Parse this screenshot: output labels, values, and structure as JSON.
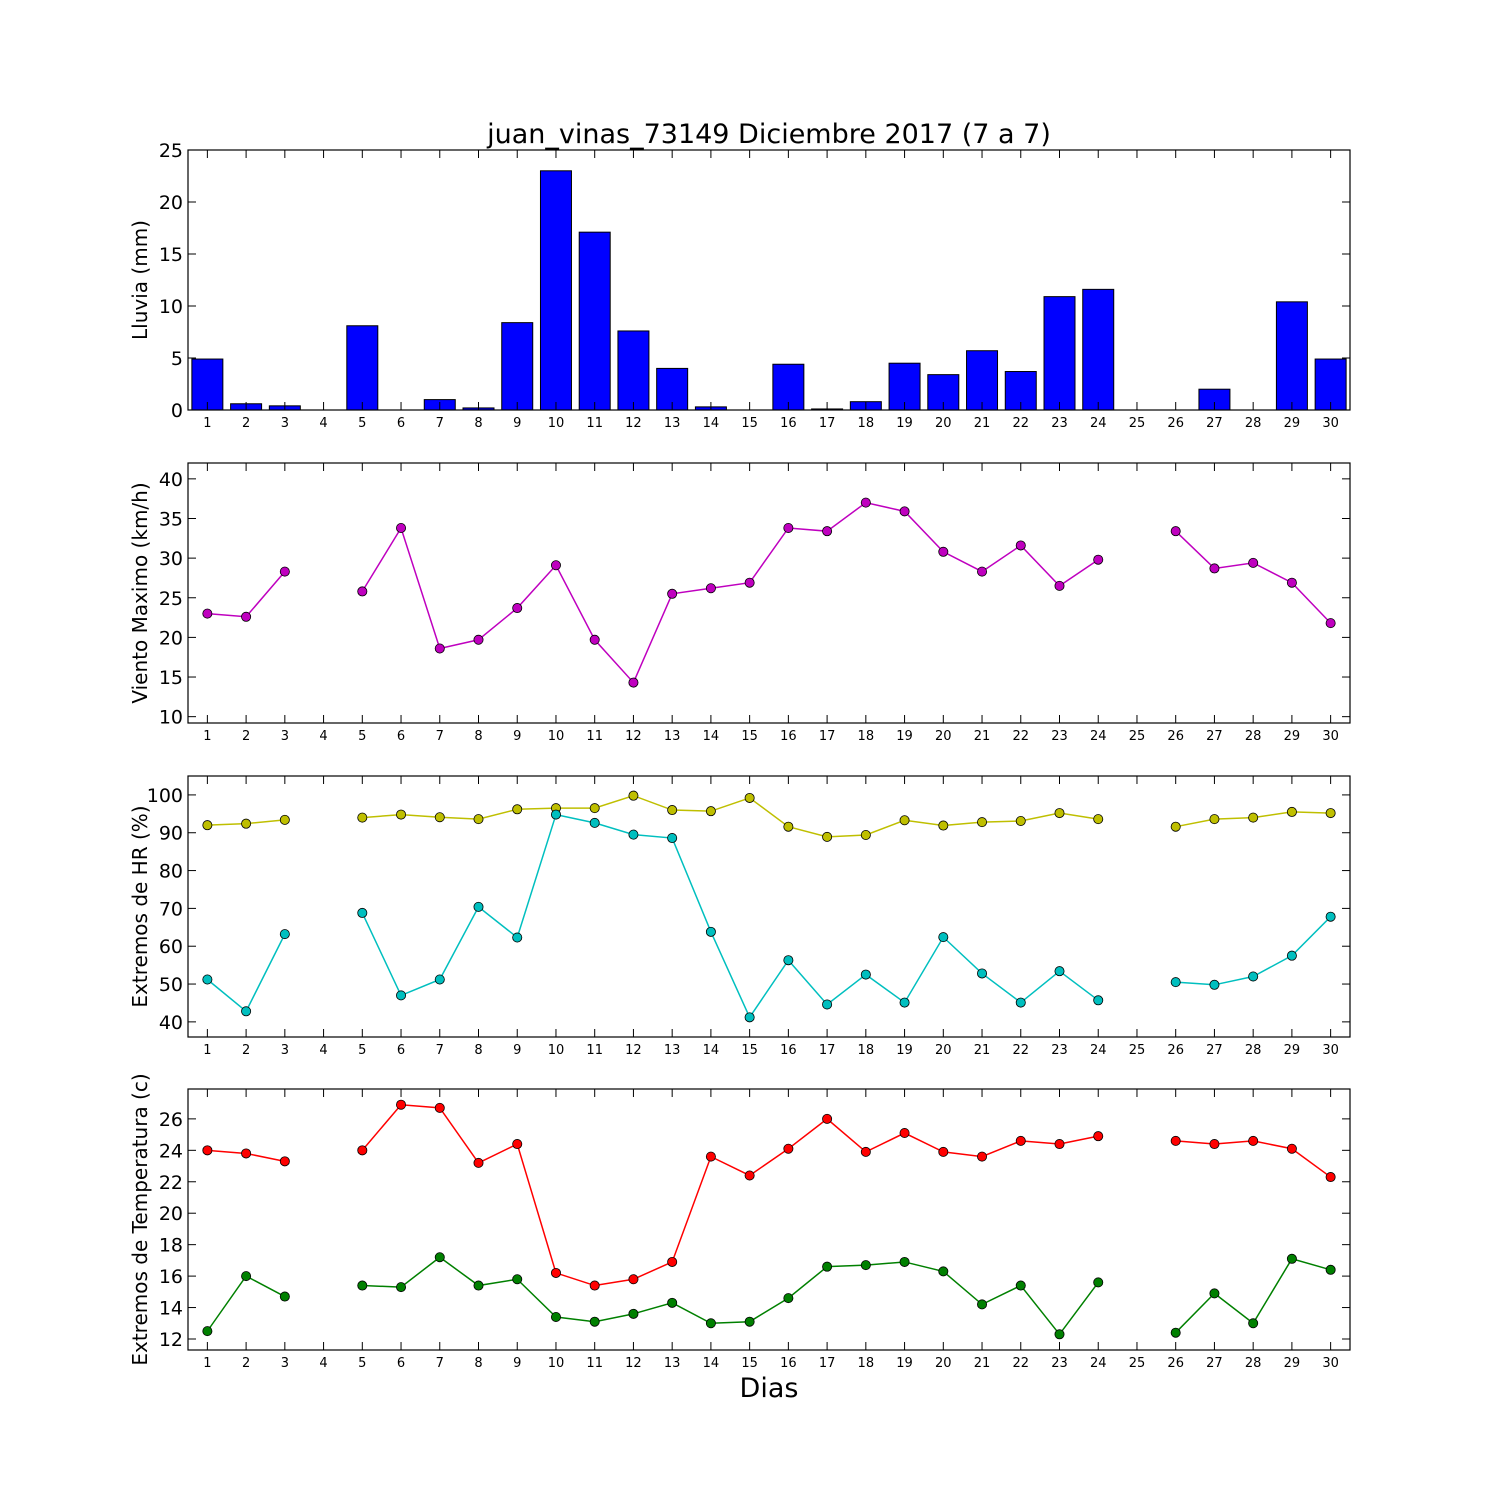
{
  "title": "juan_vinas_73149 Diciembre 2017  (7 a 7)",
  "xlabel": "Dias",
  "colors": {
    "rain": "#0000ff",
    "wind": "#bf00bf",
    "hr_max": "#bfbf00",
    "hr_min": "#00bfbf",
    "temp_max": "#ff0000",
    "temp_min": "#008000"
  },
  "chart_data": [
    {
      "type": "bar",
      "ylabel": "Lluvia (mm)",
      "ylim": [
        0,
        25
      ],
      "yticks": [
        0,
        5,
        10,
        15,
        20,
        25
      ],
      "categories": [
        1,
        2,
        3,
        4,
        5,
        6,
        7,
        8,
        9,
        10,
        11,
        12,
        13,
        14,
        15,
        16,
        17,
        18,
        19,
        20,
        21,
        22,
        23,
        24,
        25,
        26,
        27,
        28,
        29,
        30
      ],
      "series": [
        {
          "color_key": "rain",
          "values": [
            4.9,
            0.6,
            0.4,
            0,
            8.1,
            0,
            1.0,
            0.2,
            8.4,
            23.0,
            17.1,
            7.6,
            4.0,
            0.3,
            0,
            4.4,
            0.1,
            0.8,
            4.5,
            3.4,
            5.7,
            3.7,
            10.9,
            11.6,
            0,
            0,
            2.0,
            0,
            10.4,
            4.9
          ]
        }
      ]
    },
    {
      "type": "line",
      "ylabel": "Viento Maximo (km/h)",
      "ylim": [
        9.2,
        42
      ],
      "yticks": [
        10,
        15,
        20,
        25,
        30,
        35,
        40
      ],
      "categories": [
        1,
        2,
        3,
        4,
        5,
        6,
        7,
        8,
        9,
        10,
        11,
        12,
        13,
        14,
        15,
        16,
        17,
        18,
        19,
        20,
        21,
        22,
        23,
        24,
        25,
        26,
        27,
        28,
        29,
        30
      ],
      "series": [
        {
          "color_key": "wind",
          "values": [
            23.0,
            22.6,
            28.3,
            null,
            25.8,
            33.8,
            18.6,
            19.7,
            23.7,
            29.1,
            19.7,
            14.3,
            25.5,
            26.2,
            26.9,
            33.8,
            33.4,
            37.0,
            35.9,
            30.8,
            28.3,
            31.6,
            26.5,
            29.8,
            null,
            33.4,
            28.7,
            29.4,
            26.9,
            21.8
          ]
        }
      ]
    },
    {
      "type": "line",
      "ylabel": "Extremos de HR (%)",
      "ylim": [
        36,
        105
      ],
      "yticks": [
        40,
        50,
        60,
        70,
        80,
        90,
        100
      ],
      "categories": [
        1,
        2,
        3,
        4,
        5,
        6,
        7,
        8,
        9,
        10,
        11,
        12,
        13,
        14,
        15,
        16,
        17,
        18,
        19,
        20,
        21,
        22,
        23,
        24,
        25,
        26,
        27,
        28,
        29,
        30
      ],
      "series": [
        {
          "color_key": "hr_max",
          "values": [
            92,
            92.4,
            93.4,
            null,
            94,
            94.8,
            94.1,
            93.6,
            96.2,
            96.5,
            96.5,
            99.8,
            96,
            95.7,
            99.2,
            91.6,
            88.9,
            89.4,
            93.3,
            91.9,
            92.8,
            93.1,
            95.2,
            93.6,
            null,
            91.6,
            93.6,
            94,
            95.5,
            95.2
          ]
        },
        {
          "color_key": "hr_min",
          "values": [
            51.2,
            42.8,
            63.2,
            null,
            68.8,
            47,
            51.2,
            70.4,
            62.3,
            94.8,
            92.6,
            89.5,
            88.6,
            63.8,
            41.2,
            56.3,
            44.6,
            52.5,
            45.1,
            62.4,
            52.8,
            45.1,
            53.4,
            45.7,
            null,
            50.5,
            49.8,
            52,
            57.5,
            67.8
          ]
        }
      ]
    },
    {
      "type": "line",
      "ylabel": "Extremos de Temperatura (c)",
      "ylim": [
        11.3,
        27.9
      ],
      "yticks": [
        12,
        14,
        16,
        18,
        20,
        22,
        24,
        26
      ],
      "categories": [
        1,
        2,
        3,
        4,
        5,
        6,
        7,
        8,
        9,
        10,
        11,
        12,
        13,
        14,
        15,
        16,
        17,
        18,
        19,
        20,
        21,
        22,
        23,
        24,
        25,
        26,
        27,
        28,
        29,
        30
      ],
      "series": [
        {
          "color_key": "temp_max",
          "values": [
            24,
            23.8,
            23.3,
            null,
            24,
            26.9,
            26.7,
            23.2,
            24.4,
            16.2,
            15.4,
            15.8,
            16.9,
            23.6,
            22.4,
            24.1,
            26,
            23.9,
            25.1,
            23.9,
            23.6,
            24.6,
            24.4,
            24.9,
            null,
            24.6,
            24.4,
            24.6,
            24.1,
            22.3
          ]
        },
        {
          "color_key": "temp_min",
          "values": [
            12.5,
            16,
            14.7,
            null,
            15.4,
            15.3,
            17.2,
            15.4,
            15.8,
            13.4,
            13.1,
            13.6,
            14.3,
            13,
            13.1,
            14.6,
            16.6,
            16.7,
            16.9,
            16.3,
            14.2,
            15.4,
            12.3,
            15.6,
            null,
            12.4,
            14.9,
            13,
            17.1,
            16.4
          ]
        }
      ]
    }
  ]
}
